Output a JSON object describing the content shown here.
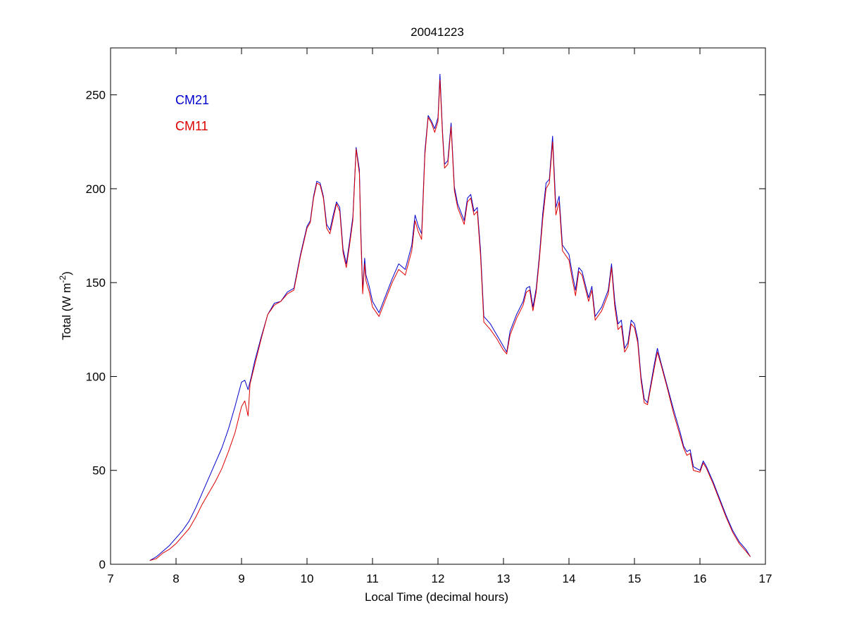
{
  "chart_data": {
    "type": "line",
    "title": "20041223",
    "xlabel": "Local Time (decimal hours)",
    "ylabel_main": "Total (W m",
    "ylabel_sup": "-2",
    "ylabel_close": ")",
    "xlim": [
      7,
      17
    ],
    "ylim": [
      0,
      275
    ],
    "xticks": [
      "7",
      "8",
      "9",
      "10",
      "11",
      "12",
      "13",
      "14",
      "15",
      "16",
      "17"
    ],
    "yticks": [
      "0",
      "50",
      "100",
      "150",
      "200",
      "250"
    ],
    "grid": false,
    "legend_position": "top-left",
    "series": [
      {
        "name": "CM21",
        "color": "#0000cc",
        "points": [
          [
            7.6,
            2
          ],
          [
            7.7,
            4
          ],
          [
            7.8,
            7
          ],
          [
            7.9,
            10
          ],
          [
            8.0,
            14
          ],
          [
            8.1,
            18
          ],
          [
            8.2,
            23
          ],
          [
            8.3,
            30
          ],
          [
            8.4,
            38
          ],
          [
            8.5,
            46
          ],
          [
            8.6,
            54
          ],
          [
            8.7,
            62
          ],
          [
            8.8,
            72
          ],
          [
            8.9,
            84
          ],
          [
            9.0,
            97
          ],
          [
            9.05,
            98
          ],
          [
            9.1,
            93
          ],
          [
            9.15,
            100
          ],
          [
            9.2,
            108
          ],
          [
            9.3,
            121
          ],
          [
            9.4,
            133
          ],
          [
            9.5,
            139
          ],
          [
            9.6,
            140
          ],
          [
            9.7,
            145
          ],
          [
            9.8,
            147
          ],
          [
            9.9,
            165
          ],
          [
            10.0,
            180
          ],
          [
            10.05,
            183
          ],
          [
            10.1,
            196
          ],
          [
            10.15,
            204
          ],
          [
            10.2,
            203
          ],
          [
            10.25,
            196
          ],
          [
            10.3,
            181
          ],
          [
            10.35,
            178
          ],
          [
            10.4,
            186
          ],
          [
            10.45,
            193
          ],
          [
            10.5,
            190
          ],
          [
            10.55,
            168
          ],
          [
            10.6,
            160
          ],
          [
            10.65,
            172
          ],
          [
            10.7,
            185
          ],
          [
            10.75,
            222
          ],
          [
            10.8,
            210
          ],
          [
            10.82,
            180
          ],
          [
            10.85,
            146
          ],
          [
            10.88,
            163
          ],
          [
            10.9,
            154
          ],
          [
            10.95,
            148
          ],
          [
            11.0,
            140
          ],
          [
            11.1,
            134
          ],
          [
            11.2,
            143
          ],
          [
            11.3,
            152
          ],
          [
            11.4,
            160
          ],
          [
            11.5,
            157
          ],
          [
            11.6,
            170
          ],
          [
            11.65,
            186
          ],
          [
            11.7,
            180
          ],
          [
            11.75,
            176
          ],
          [
            11.8,
            220
          ],
          [
            11.85,
            239
          ],
          [
            11.9,
            236
          ],
          [
            11.95,
            232
          ],
          [
            12.0,
            238
          ],
          [
            12.03,
            261
          ],
          [
            12.07,
            230
          ],
          [
            12.1,
            213
          ],
          [
            12.15,
            215
          ],
          [
            12.2,
            235
          ],
          [
            12.25,
            201
          ],
          [
            12.3,
            192
          ],
          [
            12.4,
            183
          ],
          [
            12.45,
            195
          ],
          [
            12.5,
            197
          ],
          [
            12.55,
            188
          ],
          [
            12.6,
            190
          ],
          [
            12.65,
            167
          ],
          [
            12.7,
            132
          ],
          [
            12.8,
            128
          ],
          [
            12.9,
            122
          ],
          [
            13.0,
            116
          ],
          [
            13.05,
            113
          ],
          [
            13.1,
            124
          ],
          [
            13.2,
            133
          ],
          [
            13.3,
            140
          ],
          [
            13.35,
            147
          ],
          [
            13.4,
            148
          ],
          [
            13.45,
            137
          ],
          [
            13.5,
            147
          ],
          [
            13.55,
            165
          ],
          [
            13.6,
            187
          ],
          [
            13.65,
            203
          ],
          [
            13.7,
            205
          ],
          [
            13.75,
            228
          ],
          [
            13.8,
            190
          ],
          [
            13.85,
            196
          ],
          [
            13.9,
            170
          ],
          [
            14.0,
            165
          ],
          [
            14.05,
            155
          ],
          [
            14.1,
            146
          ],
          [
            14.15,
            158
          ],
          [
            14.2,
            156
          ],
          [
            14.3,
            142
          ],
          [
            14.35,
            148
          ],
          [
            14.4,
            132
          ],
          [
            14.5,
            137
          ],
          [
            14.6,
            146
          ],
          [
            14.65,
            160
          ],
          [
            14.7,
            140
          ],
          [
            14.75,
            128
          ],
          [
            14.8,
            130
          ],
          [
            14.85,
            115
          ],
          [
            14.9,
            118
          ],
          [
            14.95,
            130
          ],
          [
            15.0,
            128
          ],
          [
            15.05,
            120
          ],
          [
            15.1,
            100
          ],
          [
            15.15,
            88
          ],
          [
            15.2,
            86
          ],
          [
            15.3,
            106
          ],
          [
            15.35,
            115
          ],
          [
            15.4,
            108
          ],
          [
            15.5,
            95
          ],
          [
            15.6,
            82
          ],
          [
            15.7,
            70
          ],
          [
            15.75,
            63
          ],
          [
            15.8,
            60
          ],
          [
            15.85,
            61
          ],
          [
            15.9,
            52
          ],
          [
            16.0,
            50
          ],
          [
            16.05,
            55
          ],
          [
            16.1,
            52
          ],
          [
            16.2,
            44
          ],
          [
            16.3,
            35
          ],
          [
            16.4,
            26
          ],
          [
            16.5,
            18
          ],
          [
            16.6,
            12
          ],
          [
            16.7,
            8
          ],
          [
            16.77,
            4
          ]
        ]
      },
      {
        "name": "CM11",
        "color": "#dd0000",
        "points": [
          [
            7.6,
            2
          ],
          [
            7.7,
            3
          ],
          [
            7.8,
            6
          ],
          [
            7.9,
            8
          ],
          [
            8.0,
            11
          ],
          [
            8.1,
            15
          ],
          [
            8.2,
            19
          ],
          [
            8.3,
            25
          ],
          [
            8.4,
            32
          ],
          [
            8.5,
            38
          ],
          [
            8.6,
            44
          ],
          [
            8.7,
            51
          ],
          [
            8.8,
            60
          ],
          [
            8.9,
            70
          ],
          [
            9.0,
            84
          ],
          [
            9.05,
            87
          ],
          [
            9.1,
            79
          ],
          [
            9.13,
            96
          ],
          [
            9.2,
            106
          ],
          [
            9.3,
            120
          ],
          [
            9.4,
            133
          ],
          [
            9.5,
            138
          ],
          [
            9.6,
            140
          ],
          [
            9.7,
            144
          ],
          [
            9.8,
            146
          ],
          [
            9.9,
            164
          ],
          [
            10.0,
            179
          ],
          [
            10.05,
            182
          ],
          [
            10.1,
            195
          ],
          [
            10.15,
            203
          ],
          [
            10.2,
            202
          ],
          [
            10.25,
            195
          ],
          [
            10.3,
            179
          ],
          [
            10.35,
            176
          ],
          [
            10.4,
            184
          ],
          [
            10.45,
            192
          ],
          [
            10.5,
            188
          ],
          [
            10.55,
            166
          ],
          [
            10.6,
            158
          ],
          [
            10.65,
            170
          ],
          [
            10.7,
            183
          ],
          [
            10.75,
            221
          ],
          [
            10.8,
            208
          ],
          [
            10.82,
            176
          ],
          [
            10.85,
            144
          ],
          [
            10.88,
            160
          ],
          [
            10.9,
            151
          ],
          [
            10.95,
            145
          ],
          [
            11.0,
            137
          ],
          [
            11.1,
            132
          ],
          [
            11.2,
            141
          ],
          [
            11.3,
            150
          ],
          [
            11.4,
            157
          ],
          [
            11.5,
            154
          ],
          [
            11.6,
            167
          ],
          [
            11.65,
            183
          ],
          [
            11.7,
            177
          ],
          [
            11.75,
            173
          ],
          [
            11.8,
            218
          ],
          [
            11.85,
            238
          ],
          [
            11.9,
            235
          ],
          [
            11.95,
            230
          ],
          [
            12.0,
            236
          ],
          [
            12.03,
            258
          ],
          [
            12.07,
            228
          ],
          [
            12.1,
            211
          ],
          [
            12.15,
            213
          ],
          [
            12.2,
            233
          ],
          [
            12.25,
            199
          ],
          [
            12.3,
            190
          ],
          [
            12.4,
            181
          ],
          [
            12.45,
            193
          ],
          [
            12.5,
            195
          ],
          [
            12.55,
            186
          ],
          [
            12.6,
            188
          ],
          [
            12.65,
            164
          ],
          [
            12.7,
            129
          ],
          [
            12.8,
            125
          ],
          [
            12.9,
            120
          ],
          [
            13.0,
            114
          ],
          [
            13.05,
            112
          ],
          [
            13.1,
            122
          ],
          [
            13.2,
            131
          ],
          [
            13.3,
            138
          ],
          [
            13.35,
            145
          ],
          [
            13.4,
            146
          ],
          [
            13.45,
            135
          ],
          [
            13.5,
            145
          ],
          [
            13.55,
            163
          ],
          [
            13.6,
            184
          ],
          [
            13.65,
            200
          ],
          [
            13.7,
            203
          ],
          [
            13.75,
            225
          ],
          [
            13.8,
            186
          ],
          [
            13.85,
            193
          ],
          [
            13.9,
            167
          ],
          [
            14.0,
            162
          ],
          [
            14.05,
            152
          ],
          [
            14.1,
            143
          ],
          [
            14.15,
            156
          ],
          [
            14.2,
            154
          ],
          [
            14.3,
            140
          ],
          [
            14.35,
            146
          ],
          [
            14.4,
            130
          ],
          [
            14.5,
            135
          ],
          [
            14.6,
            144
          ],
          [
            14.65,
            158
          ],
          [
            14.7,
            137
          ],
          [
            14.75,
            125
          ],
          [
            14.8,
            127
          ],
          [
            14.85,
            113
          ],
          [
            14.9,
            116
          ],
          [
            14.95,
            128
          ],
          [
            15.0,
            126
          ],
          [
            15.05,
            118
          ],
          [
            15.1,
            98
          ],
          [
            15.15,
            86
          ],
          [
            15.2,
            85
          ],
          [
            15.3,
            104
          ],
          [
            15.35,
            113
          ],
          [
            15.4,
            107
          ],
          [
            15.5,
            94
          ],
          [
            15.6,
            80
          ],
          [
            15.7,
            68
          ],
          [
            15.75,
            62
          ],
          [
            15.8,
            58
          ],
          [
            15.85,
            59
          ],
          [
            15.9,
            50
          ],
          [
            16.0,
            49
          ],
          [
            16.05,
            54
          ],
          [
            16.1,
            51
          ],
          [
            16.2,
            43
          ],
          [
            16.3,
            34
          ],
          [
            16.4,
            25
          ],
          [
            16.5,
            17
          ],
          [
            16.6,
            11
          ],
          [
            16.7,
            7
          ],
          [
            16.77,
            4
          ]
        ]
      }
    ]
  }
}
